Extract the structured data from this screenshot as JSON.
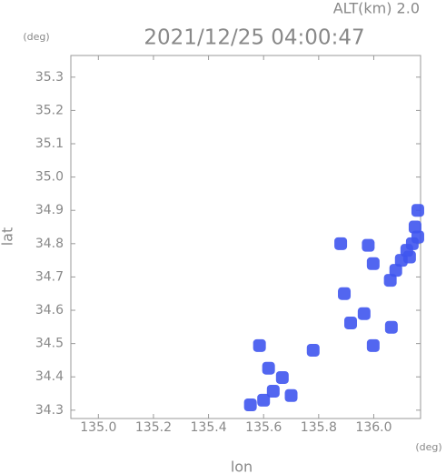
{
  "chart_data": {
    "type": "scatter",
    "title": "2021/12/25 04:00:47",
    "subtitle": "ALT(km) 2.0",
    "x_label": "lon",
    "y_label": "lat",
    "x_unit": "(deg)",
    "y_unit": "(deg)",
    "xlim": [
      134.9,
      136.17
    ],
    "ylim": [
      34.275,
      35.365
    ],
    "xticks": [
      {
        "value": 135.0,
        "label": "135.0"
      },
      135.2,
      135.4,
      135.6,
      135.8,
      {
        "value": 136.0,
        "label": "136.0"
      }
    ],
    "yticks": [
      34.3,
      34.4,
      34.5,
      34.6,
      34.7,
      34.8,
      34.9,
      {
        "value": 35.0,
        "label": "35.0"
      },
      35.1,
      35.2,
      35.3
    ],
    "color": "#3f55ee",
    "x": [
      136.16,
      136.15,
      136.14,
      136.12,
      136.1,
      136.08,
      136.06,
      136.16,
      136.13,
      136.064,
      135.965,
      135.998,
      135.916,
      135.893,
      135.998,
      135.98,
      135.78,
      135.635,
      135.6,
      135.668,
      135.618,
      135.552,
      135.7,
      135.585,
      135.88
    ],
    "values": [
      34.9,
      34.85,
      34.8,
      34.78,
      34.75,
      34.72,
      34.69,
      34.82,
      34.76,
      34.549,
      34.59,
      34.494,
      34.562,
      34.65,
      34.74,
      34.795,
      34.48,
      34.357,
      34.33,
      34.398,
      34.426,
      34.316,
      34.344,
      34.494,
      34.8
    ]
  }
}
